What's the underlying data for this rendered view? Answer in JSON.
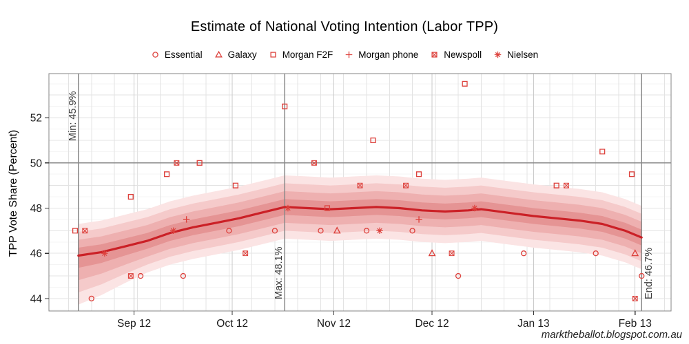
{
  "chart_data": {
    "type": "line",
    "title": "Estimate of National Voting Intention (Labor TPP)",
    "ylabel": "TPP Vote Share (Percent)",
    "xlabel": "",
    "watermark": "marktheballot.blogspot.com.au",
    "legend_position": "top",
    "grid": true,
    "x_domain": [
      "2012-08-06",
      "2013-02-12"
    ],
    "y_domain": [
      43.45,
      53.95
    ],
    "y_ticks": [
      44,
      46,
      48,
      50,
      52
    ],
    "y_grid_step": 1,
    "y_minor_step": 0.5,
    "x_ticks": [
      {
        "date": "2012-09-01",
        "label": "Sep 12"
      },
      {
        "date": "2012-10-01",
        "label": "Oct 12"
      },
      {
        "date": "2012-11-01",
        "label": "Nov 12"
      },
      {
        "date": "2012-12-01",
        "label": "Dec 12"
      },
      {
        "date": "2013-01-01",
        "label": "Jan 13"
      },
      {
        "date": "2013-02-01",
        "label": "Feb 13"
      }
    ],
    "x_minor_grid_start": "2012-08-12",
    "x_minor_grid_step_days": 7,
    "reference_hline": 50,
    "annotations": [
      {
        "date": "2012-08-15",
        "label": "Min: 45.9%",
        "side": "left",
        "valign": "top"
      },
      {
        "date": "2012-10-17",
        "label": "Max: 48.1%",
        "side": "left",
        "valign": "bottom"
      },
      {
        "date": "2013-02-03",
        "label": "End: 46.7%",
        "side": "right",
        "valign": "bottom"
      }
    ],
    "bands": {
      "half_widths": [
        0.35,
        0.7,
        1.05,
        1.4
      ],
      "colors": [
        "#e59494",
        "#eeb0b0",
        "#f5caca",
        "#fbe4e4"
      ]
    },
    "trend": {
      "points": [
        [
          "2012-08-15",
          45.9
        ],
        [
          "2012-08-22",
          46.05
        ],
        [
          "2012-08-29",
          46.3
        ],
        [
          "2012-09-05",
          46.55
        ],
        [
          "2012-09-12",
          46.9
        ],
        [
          "2012-09-19",
          47.15
        ],
        [
          "2012-09-26",
          47.35
        ],
        [
          "2012-10-03",
          47.55
        ],
        [
          "2012-10-10",
          47.8
        ],
        [
          "2012-10-17",
          48.05
        ],
        [
          "2012-10-24",
          48.0
        ],
        [
          "2012-10-31",
          47.95
        ],
        [
          "2012-11-07",
          48.0
        ],
        [
          "2012-11-14",
          48.05
        ],
        [
          "2012-11-21",
          48.0
        ],
        [
          "2012-11-28",
          47.9
        ],
        [
          "2012-12-05",
          47.85
        ],
        [
          "2012-12-12",
          47.9
        ],
        [
          "2012-12-16",
          47.95
        ],
        [
          "2012-12-24",
          47.8
        ],
        [
          "2013-01-01",
          47.65
        ],
        [
          "2013-01-08",
          47.55
        ],
        [
          "2013-01-15",
          47.45
        ],
        [
          "2013-01-22",
          47.3
        ],
        [
          "2013-01-29",
          47.0
        ],
        [
          "2013-02-03",
          46.7
        ]
      ]
    },
    "series": [
      {
        "name": "Essential",
        "marker": "circle",
        "points": [
          [
            "2012-08-19",
            44
          ],
          [
            "2012-09-03",
            45
          ],
          [
            "2012-09-16",
            45
          ],
          [
            "2012-09-30",
            47
          ],
          [
            "2012-10-14",
            47
          ],
          [
            "2012-10-28",
            47
          ],
          [
            "2012-11-11",
            47
          ],
          [
            "2012-11-25",
            47
          ],
          [
            "2012-12-09",
            45
          ],
          [
            "2012-12-29",
            46
          ],
          [
            "2013-01-20",
            46
          ],
          [
            "2013-02-03",
            45
          ]
        ]
      },
      {
        "name": "Galaxy",
        "marker": "triangle",
        "points": [
          [
            "2012-11-02",
            47
          ],
          [
            "2012-12-01",
            46
          ],
          [
            "2013-02-01",
            46
          ]
        ]
      },
      {
        "name": "Morgan F2F",
        "marker": "square",
        "points": [
          [
            "2012-08-14",
            47
          ],
          [
            "2012-08-31",
            48.5
          ],
          [
            "2012-09-11",
            49.5
          ],
          [
            "2012-09-21",
            50
          ],
          [
            "2012-10-02",
            49
          ],
          [
            "2012-10-17",
            52.5
          ],
          [
            "2012-10-30",
            48
          ],
          [
            "2012-11-13",
            51
          ],
          [
            "2012-11-27",
            49.5
          ],
          [
            "2012-12-11",
            53.5
          ],
          [
            "2013-01-08",
            49
          ],
          [
            "2013-01-22",
            50.5
          ],
          [
            "2013-01-31",
            49.5
          ]
        ]
      },
      {
        "name": "Morgan phone",
        "marker": "plus",
        "points": [
          [
            "2012-09-17",
            47.5
          ],
          [
            "2012-11-27",
            47.5
          ]
        ]
      },
      {
        "name": "Newspoll",
        "marker": "square-x",
        "points": [
          [
            "2012-08-17",
            47
          ],
          [
            "2012-08-31",
            45
          ],
          [
            "2012-09-14",
            50
          ],
          [
            "2012-10-05",
            46
          ],
          [
            "2012-10-26",
            50
          ],
          [
            "2012-11-09",
            49
          ],
          [
            "2012-11-23",
            49
          ],
          [
            "2012-12-07",
            46
          ],
          [
            "2013-01-11",
            49
          ],
          [
            "2013-02-01",
            44
          ]
        ]
      },
      {
        "name": "Nielsen",
        "marker": "asterisk",
        "points": [
          [
            "2012-08-23",
            46
          ],
          [
            "2012-09-13",
            47
          ],
          [
            "2012-10-18",
            48
          ],
          [
            "2012-11-15",
            47
          ],
          [
            "2012-12-14",
            48
          ]
        ]
      }
    ],
    "colors": {
      "points": "#dd423d",
      "trend": "#cb2026",
      "grid_major": "#e3e3e3",
      "grid_minor": "#f4f4f4",
      "grid_month": "#c9c9c9",
      "reference_line": "#888888",
      "panel_border": "#858585",
      "tick": "#333333",
      "tick_label": "#1a1a1a",
      "annotation_text": "#3d3d3d"
    }
  }
}
